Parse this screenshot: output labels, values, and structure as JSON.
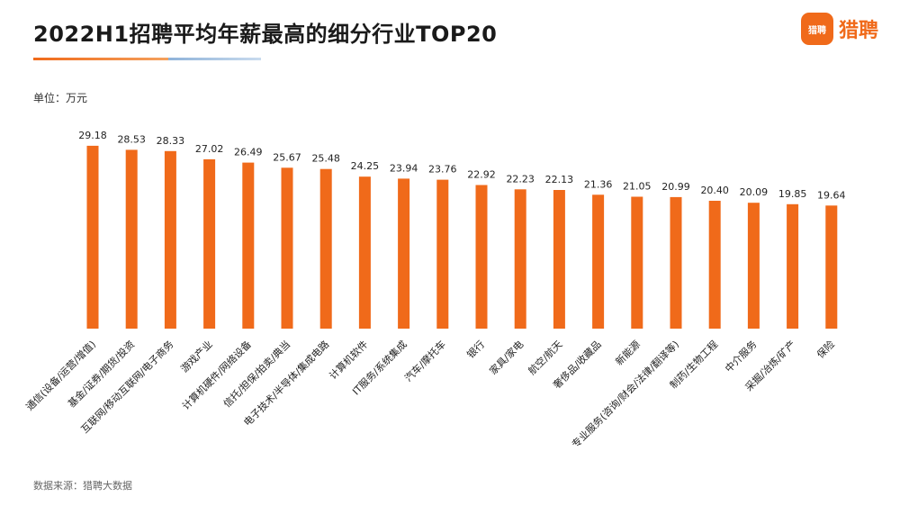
{
  "header": {
    "title": "2022H1招聘平均年薪最高的细分行业TOP20",
    "unit_label": "单位：万元",
    "source": "数据来源：猎聘大数据"
  },
  "brand": {
    "icon_text": "猎聘",
    "name": "猎聘",
    "color": "#f06a1a"
  },
  "chart_data": {
    "type": "bar",
    "title": "2022H1招聘平均年薪最高的细分行业TOP20",
    "ylabel": "单位：万元",
    "bar_color": "#f06a1a",
    "ylim": [
      0,
      30
    ],
    "categories": [
      "通信(设备/运营/增值)",
      "基金/证券/期货/投资",
      "互联网/移动互联网/电子商务",
      "游戏产业",
      "计算机硬件/网络设备",
      "信托/担保/拍卖/典当",
      "电子技术/半导体/集成电路",
      "计算机软件",
      "IT服务/系统集成",
      "汽车/摩托车",
      "银行",
      "家具/家电",
      "航空/航天",
      "奢侈品/收藏品",
      "新能源",
      "专业服务(咨询/财会/法律/翻译等)",
      "制药/生物工程",
      "中介服务",
      "采掘/冶炼/矿产",
      "保险"
    ],
    "values": [
      29.18,
      28.53,
      28.33,
      27.02,
      26.49,
      25.67,
      25.48,
      24.25,
      23.94,
      23.76,
      22.92,
      22.23,
      22.13,
      21.36,
      21.05,
      20.99,
      20.4,
      20.09,
      19.85,
      19.64
    ]
  }
}
